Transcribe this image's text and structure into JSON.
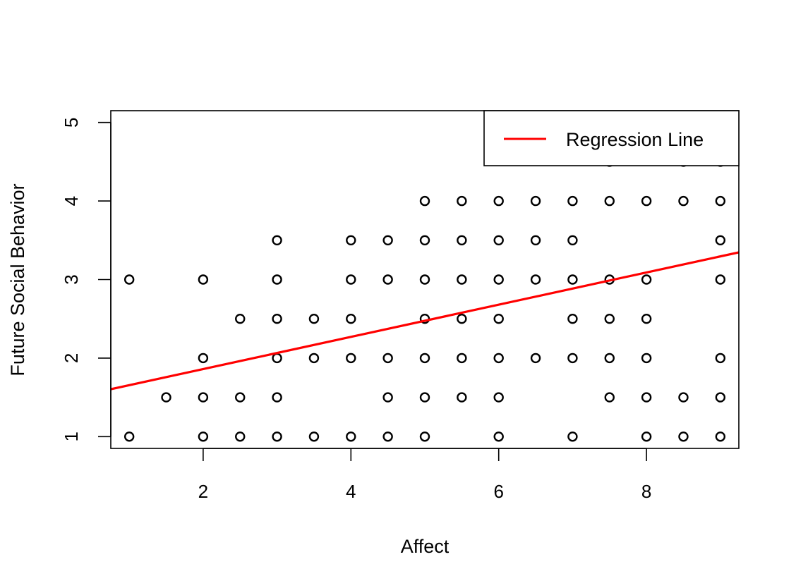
{
  "chart_data": {
    "type": "scatter",
    "title": "",
    "xlabel": "Affect",
    "ylabel": "Future Social Behavior",
    "xlim": [
      0.75,
      9.25
    ],
    "ylim": [
      0.85,
      5.15
    ],
    "xticks": [
      2,
      4,
      6,
      8
    ],
    "xtick_labels": [
      "2",
      "4",
      "6",
      "8"
    ],
    "yticks": [
      1,
      2,
      3,
      4,
      5
    ],
    "ytick_labels": [
      "1",
      "2",
      "3",
      "4",
      "5"
    ],
    "grid": false,
    "legend": {
      "position": "top-right",
      "entries": [
        {
          "label": "Regression Line",
          "color": "#ff0000"
        }
      ]
    },
    "points": [
      [
        1,
        1
      ],
      [
        1,
        3
      ],
      [
        1.5,
        1.5
      ],
      [
        2,
        1
      ],
      [
        2,
        1.5
      ],
      [
        2,
        2
      ],
      [
        2,
        3
      ],
      [
        2.5,
        1
      ],
      [
        2.5,
        1.5
      ],
      [
        2.5,
        2.5
      ],
      [
        3,
        1
      ],
      [
        3,
        1.5
      ],
      [
        3,
        2
      ],
      [
        3,
        2.5
      ],
      [
        3,
        3
      ],
      [
        3,
        3.5
      ],
      [
        3.5,
        1
      ],
      [
        3.5,
        2
      ],
      [
        3.5,
        2.5
      ],
      [
        4,
        1
      ],
      [
        4,
        2
      ],
      [
        4,
        2.5
      ],
      [
        4,
        3
      ],
      [
        4,
        3.5
      ],
      [
        4.5,
        1
      ],
      [
        4.5,
        1.5
      ],
      [
        4.5,
        2
      ],
      [
        4.5,
        3
      ],
      [
        4.5,
        3.5
      ],
      [
        5,
        1
      ],
      [
        5,
        1.5
      ],
      [
        5,
        2
      ],
      [
        5,
        2.5
      ],
      [
        5,
        3
      ],
      [
        5,
        3.5
      ],
      [
        5,
        4
      ],
      [
        5.5,
        1.5
      ],
      [
        5.5,
        2
      ],
      [
        5.5,
        2.5
      ],
      [
        5.5,
        3
      ],
      [
        5.5,
        3.5
      ],
      [
        5.5,
        4
      ],
      [
        6,
        1
      ],
      [
        6,
        1.5
      ],
      [
        6,
        2
      ],
      [
        6,
        2.5
      ],
      [
        6,
        3
      ],
      [
        6,
        3.5
      ],
      [
        6,
        4
      ],
      [
        6.5,
        2
      ],
      [
        6.5,
        3
      ],
      [
        6.5,
        3.5
      ],
      [
        6.5,
        4
      ],
      [
        7,
        1
      ],
      [
        7,
        2
      ],
      [
        7,
        2.5
      ],
      [
        7,
        3
      ],
      [
        7,
        3.5
      ],
      [
        7,
        4
      ],
      [
        7.5,
        1.5
      ],
      [
        7.5,
        2
      ],
      [
        7.5,
        2.5
      ],
      [
        7.5,
        3
      ],
      [
        7.5,
        4
      ],
      [
        7.5,
        4.5
      ],
      [
        8,
        1
      ],
      [
        8,
        1.5
      ],
      [
        8,
        2
      ],
      [
        8,
        2.5
      ],
      [
        8,
        3
      ],
      [
        8,
        4
      ],
      [
        8.5,
        1
      ],
      [
        8.5,
        1.5
      ],
      [
        8.5,
        4
      ],
      [
        8.5,
        4.5
      ],
      [
        9,
        1
      ],
      [
        9,
        1.5
      ],
      [
        9,
        2
      ],
      [
        9,
        3
      ],
      [
        9,
        3.5
      ],
      [
        9,
        4
      ],
      [
        9,
        4.5
      ]
    ],
    "regression_line": {
      "intercept": 1.45,
      "slope": 0.205,
      "color": "#ff0000"
    }
  }
}
